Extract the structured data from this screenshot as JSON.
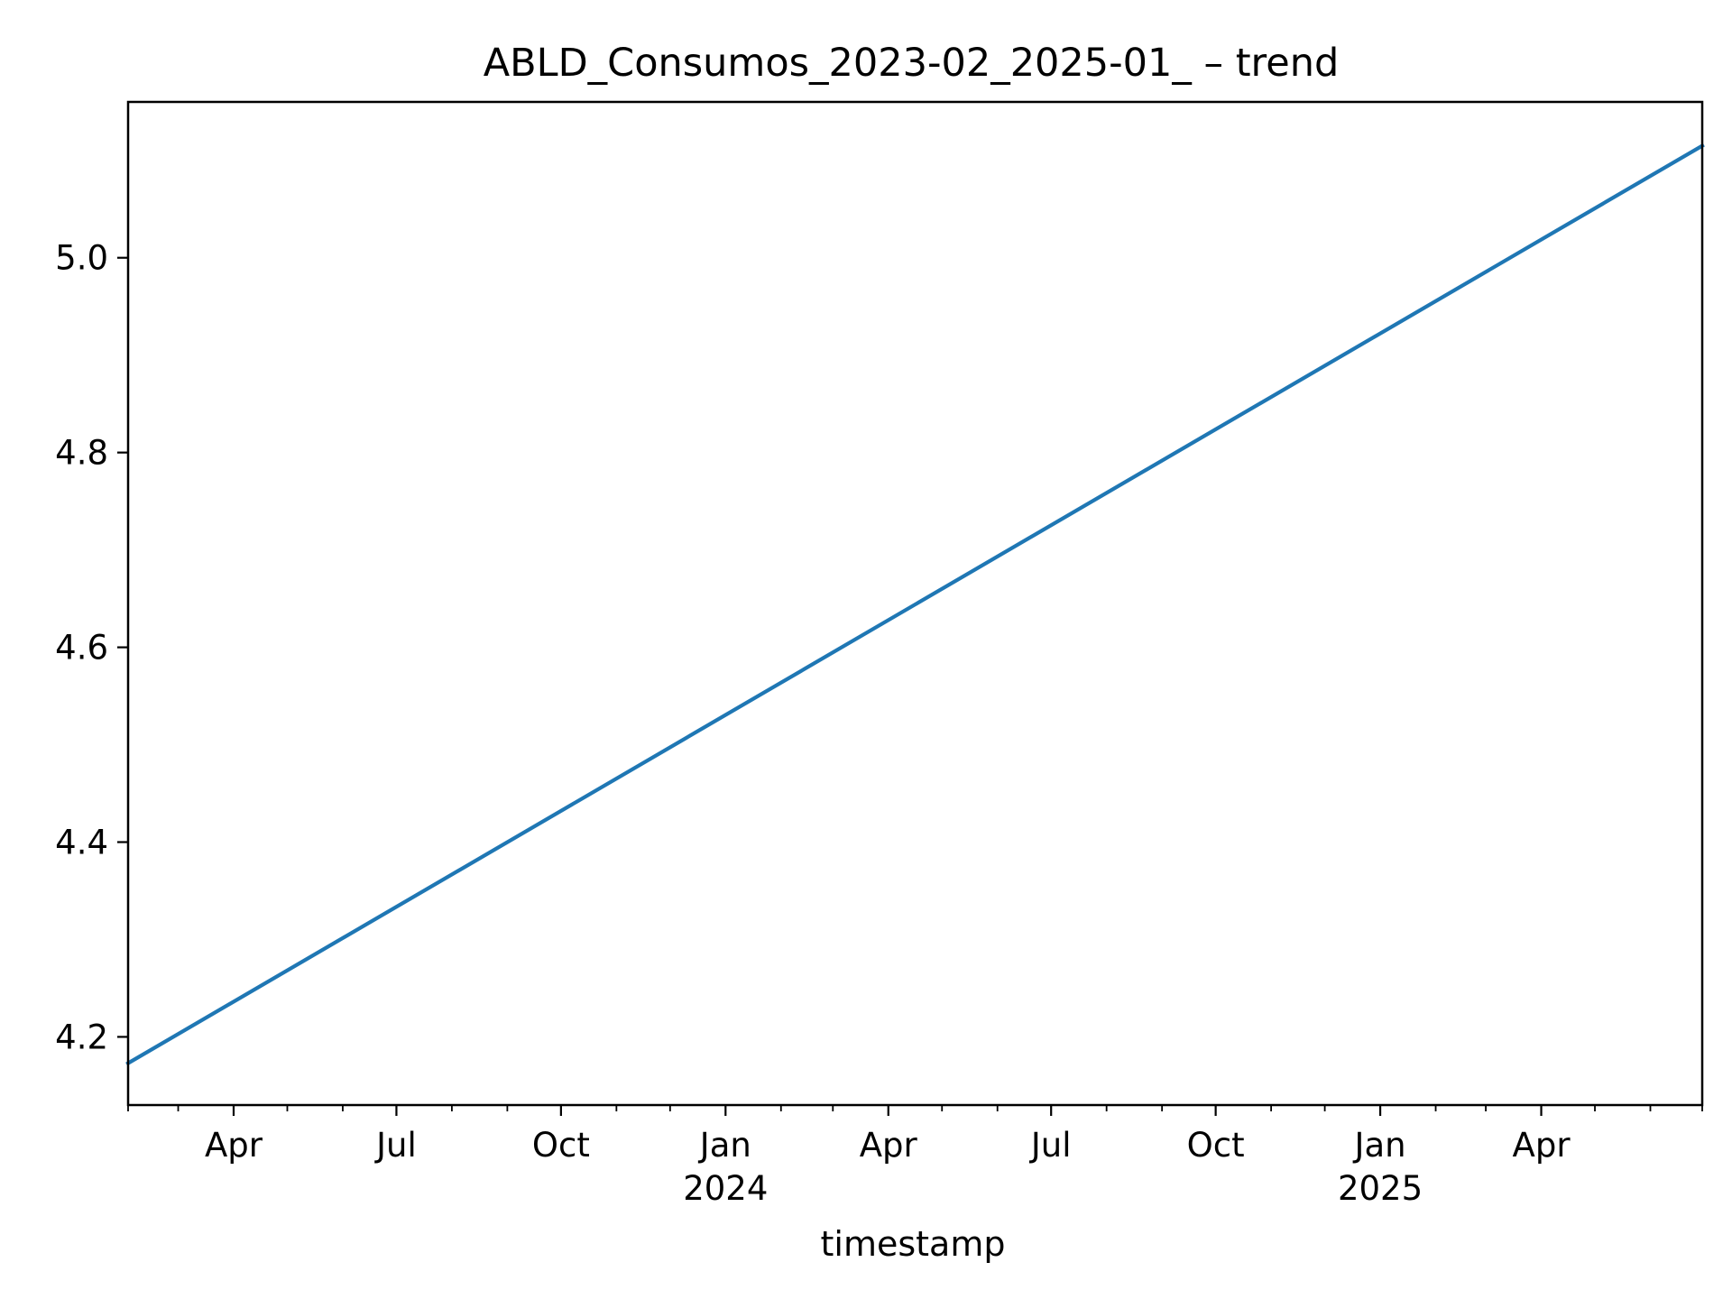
{
  "chart_data": {
    "type": "line",
    "title": "ABLD_Consumos_2023-02_2025-01_ – trend",
    "xlabel": "timestamp",
    "ylabel": "",
    "xlim": [
      "2023-02-01",
      "2025-06-30"
    ],
    "ylim": [
      4.13,
      5.16
    ],
    "grid": false,
    "legend": "none",
    "x_major_ticks": [
      {
        "date": "2023-04-01",
        "label": "Apr",
        "sublabel": ""
      },
      {
        "date": "2023-07-01",
        "label": "Jul",
        "sublabel": ""
      },
      {
        "date": "2023-10-01",
        "label": "Oct",
        "sublabel": ""
      },
      {
        "date": "2024-01-01",
        "label": "Jan",
        "sublabel": "2024"
      },
      {
        "date": "2024-04-01",
        "label": "Apr",
        "sublabel": ""
      },
      {
        "date": "2024-07-01",
        "label": "Jul",
        "sublabel": ""
      },
      {
        "date": "2024-10-01",
        "label": "Oct",
        "sublabel": ""
      },
      {
        "date": "2025-01-01",
        "label": "Jan",
        "sublabel": "2025"
      },
      {
        "date": "2025-04-01",
        "label": "Apr",
        "sublabel": ""
      }
    ],
    "x_minor_ticks": [
      "2023-02-01",
      "2023-03-01",
      "2023-05-01",
      "2023-06-01",
      "2023-08-01",
      "2023-09-01",
      "2023-11-01",
      "2023-12-01",
      "2024-02-01",
      "2024-03-01",
      "2024-05-01",
      "2024-06-01",
      "2024-08-01",
      "2024-09-01",
      "2024-11-01",
      "2024-12-01",
      "2025-02-01",
      "2025-03-01",
      "2025-05-01",
      "2025-06-01",
      "2025-06-30"
    ],
    "y_ticks": [
      4.2,
      4.4,
      4.6,
      4.8,
      5.0
    ],
    "y_tick_labels": [
      "4.2",
      "4.4",
      "4.6",
      "4.8",
      "5.0"
    ],
    "series": [
      {
        "color": "#1f77b4",
        "x": [
          "2023-02-01",
          "2025-06-30"
        ],
        "y": [
          4.173,
          5.115
        ]
      }
    ]
  }
}
